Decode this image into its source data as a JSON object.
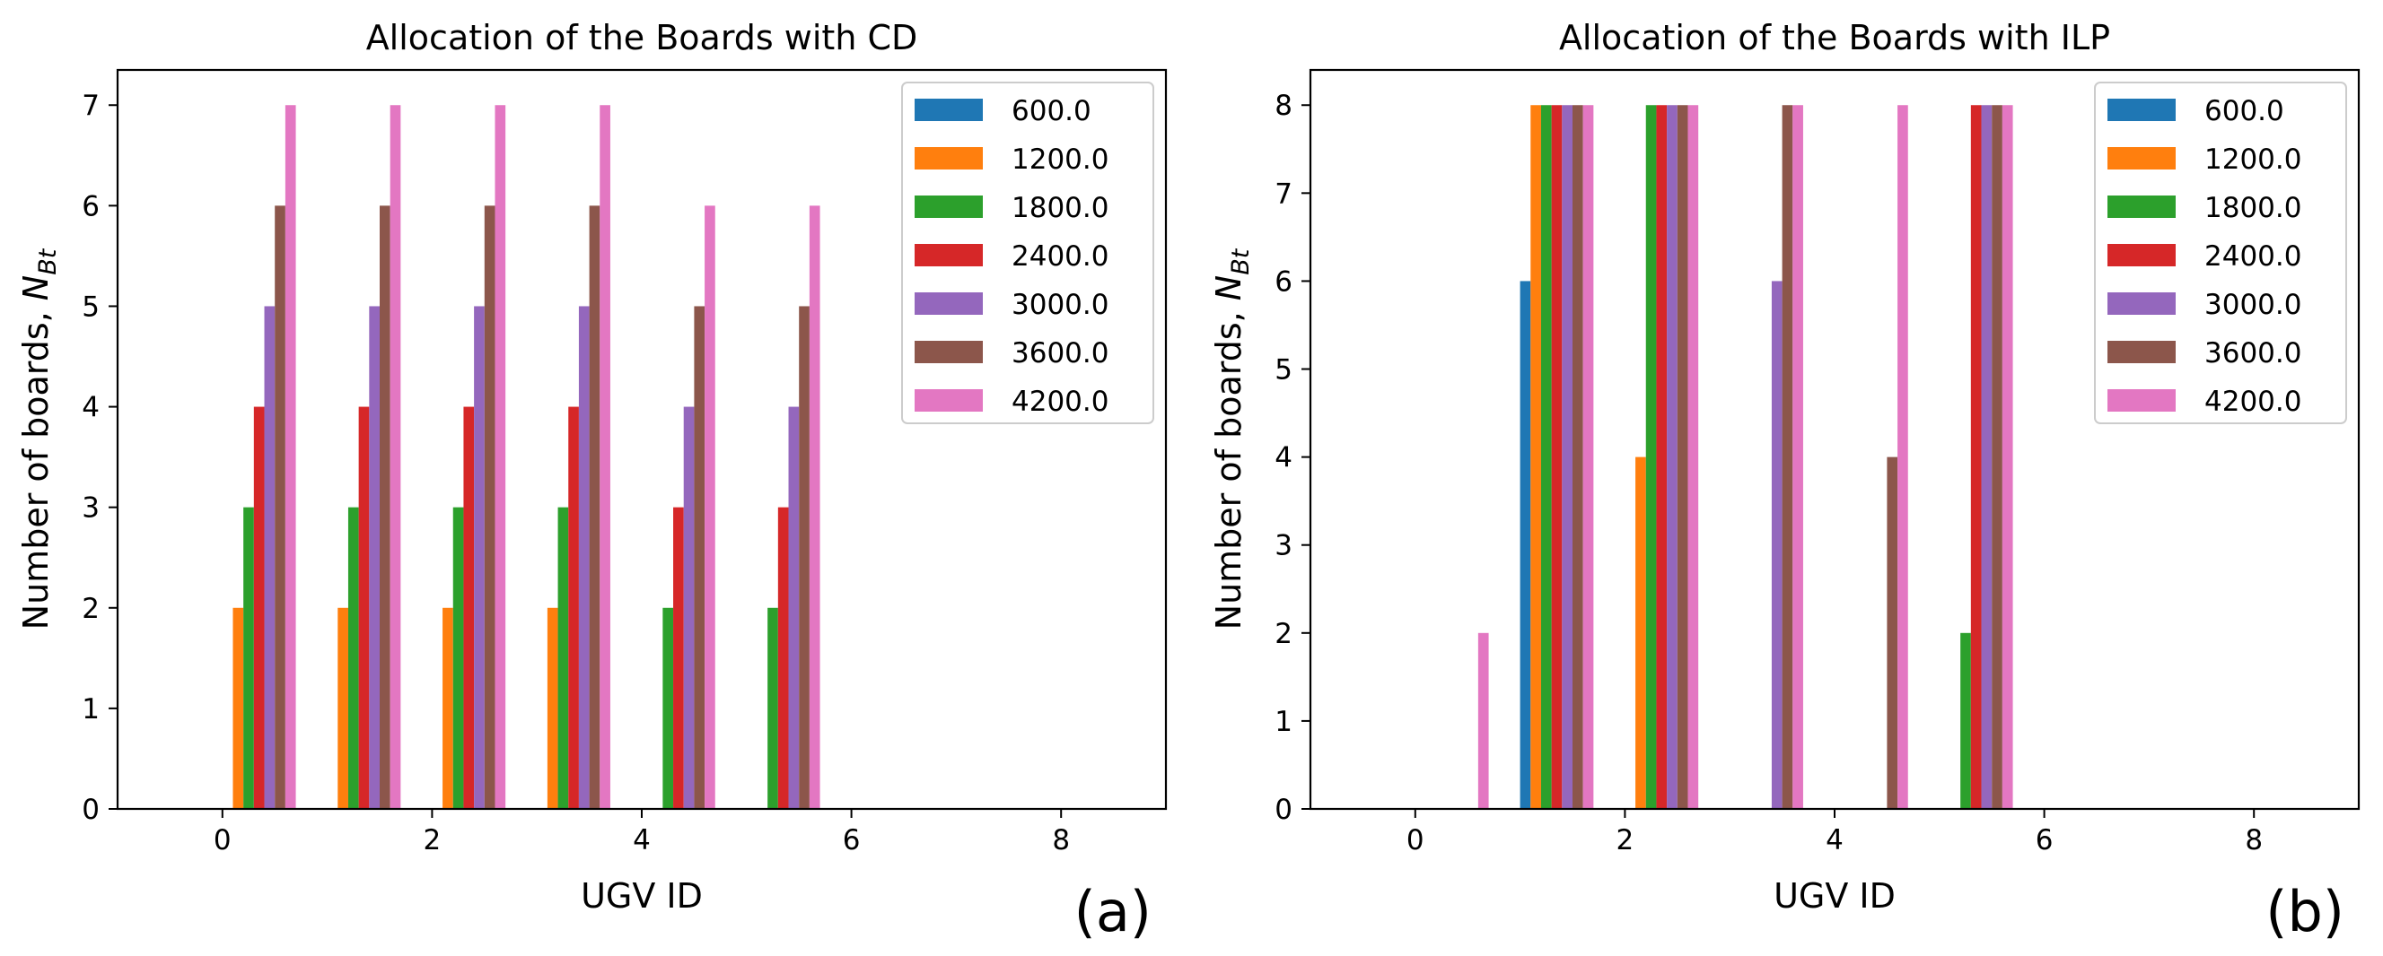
{
  "series_colors": [
    "#1f77b4",
    "#ff7f0e",
    "#2ca02c",
    "#d62728",
    "#9467bd",
    "#8c564b",
    "#e377c2"
  ],
  "chart_data": [
    {
      "type": "bar",
      "title": "Allocation of the Boards with CD",
      "xlabel": "UGV ID",
      "ylabel": "Number of boards, ",
      "ylabel_math": "N",
      "ylabel_sub": "Bt",
      "panel_label": "(a)",
      "xlim": [
        -1,
        9
      ],
      "ylim": [
        0,
        7.35
      ],
      "xticks": [
        0,
        2,
        4,
        6,
        8
      ],
      "yticks": [
        0,
        1,
        2,
        3,
        4,
        5,
        6,
        7
      ],
      "legend_position": "top-right",
      "categories": [
        0,
        1,
        2,
        3,
        4,
        5,
        6,
        7,
        8
      ],
      "series": [
        {
          "name": "600.0",
          "values": [
            0,
            0,
            0,
            0,
            0,
            0,
            0,
            0,
            0
          ]
        },
        {
          "name": "1200.0",
          "values": [
            2,
            2,
            2,
            2,
            0,
            0,
            0,
            0,
            0
          ]
        },
        {
          "name": "1800.0",
          "values": [
            3,
            3,
            3,
            3,
            2,
            2,
            0,
            0,
            0
          ]
        },
        {
          "name": "2400.0",
          "values": [
            4,
            4,
            4,
            4,
            3,
            3,
            0,
            0,
            0
          ]
        },
        {
          "name": "3000.0",
          "values": [
            5,
            5,
            5,
            5,
            4,
            4,
            0,
            0,
            0
          ]
        },
        {
          "name": "3600.0",
          "values": [
            6,
            6,
            6,
            6,
            5,
            5,
            0,
            0,
            0
          ]
        },
        {
          "name": "4200.0",
          "values": [
            7,
            7,
            7,
            7,
            6,
            6,
            0,
            0,
            0
          ]
        }
      ]
    },
    {
      "type": "bar",
      "title": "Allocation of the Boards with ILP",
      "xlabel": "UGV ID",
      "ylabel": "Number of boards, ",
      "ylabel_math": "N",
      "ylabel_sub": "Bt",
      "panel_label": "(b)",
      "xlim": [
        -1,
        9
      ],
      "ylim": [
        0,
        8.4
      ],
      "xticks": [
        0,
        2,
        4,
        6,
        8
      ],
      "yticks": [
        0,
        1,
        2,
        3,
        4,
        5,
        6,
        7,
        8
      ],
      "legend_position": "top-right",
      "categories": [
        0,
        1,
        2,
        3,
        4,
        5,
        6,
        7,
        8
      ],
      "series": [
        {
          "name": "600.0",
          "values": [
            0,
            6,
            0,
            0,
            0,
            0,
            0,
            0,
            0
          ]
        },
        {
          "name": "1200.0",
          "values": [
            0,
            8,
            4,
            0,
            0,
            0,
            0,
            0,
            0
          ]
        },
        {
          "name": "1800.0",
          "values": [
            0,
            8,
            8,
            0,
            0,
            2,
            0,
            0,
            0
          ]
        },
        {
          "name": "2400.0",
          "values": [
            0,
            8,
            8,
            0,
            0,
            8,
            0,
            0,
            0
          ]
        },
        {
          "name": "3000.0",
          "values": [
            0,
            8,
            8,
            6,
            0,
            8,
            0,
            0,
            0
          ]
        },
        {
          "name": "3600.0",
          "values": [
            0,
            8,
            8,
            8,
            4,
            8,
            0,
            0,
            0
          ]
        },
        {
          "name": "4200.0",
          "values": [
            2,
            8,
            8,
            8,
            8,
            8,
            0,
            0,
            0
          ]
        }
      ]
    }
  ]
}
